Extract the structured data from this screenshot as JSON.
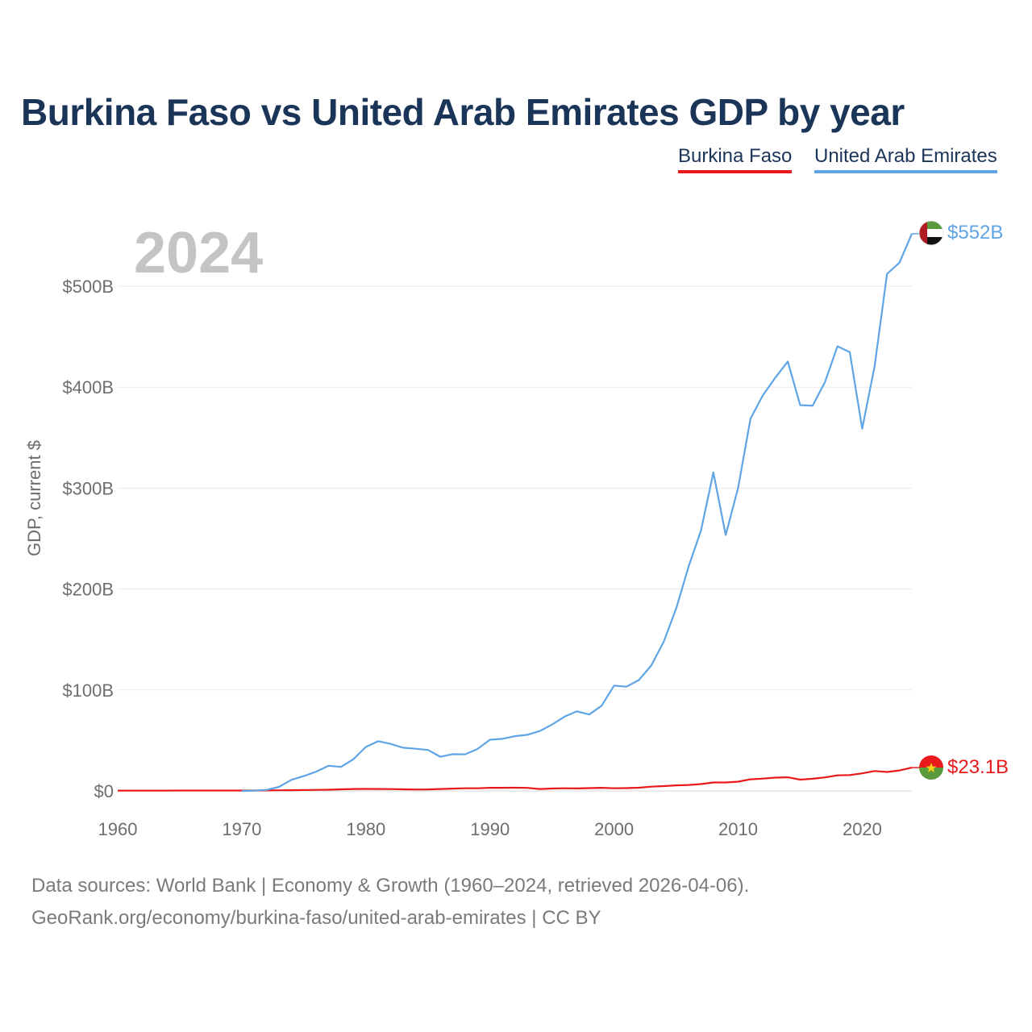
{
  "title": "Burkina Faso vs United Arab Emirates GDP by year",
  "legend": [
    {
      "label": "Burkina Faso",
      "color": "#e8191b"
    },
    {
      "label": "United Arab Emirates",
      "color": "#5fa5e6"
    }
  ],
  "source_line_1": "Data sources: World Bank | Economy & Growth (1960–2024, retrieved 2026-04-06).",
  "source_line_2": "GeoRank.org/economy/burkina-faso/united-arab-emirates | CC BY",
  "chart_data": {
    "type": "line",
    "year_label": "2024",
    "ylabel": "GDP, current $",
    "xlabel": "",
    "xlim": [
      1960,
      2024
    ],
    "ylim": [
      0,
      500
    ],
    "unit": "billion current US$",
    "x_ticks": [
      1960,
      1970,
      1980,
      1990,
      2000,
      2010,
      2020
    ],
    "x_tick_labels": [
      "1960",
      "1970",
      "1980",
      "1990",
      "2000",
      "2010",
      "2020"
    ],
    "y_ticks": [
      0,
      100,
      200,
      300,
      400,
      500
    ],
    "y_tick_labels": [
      "$0",
      "$100B",
      "$200B",
      "$300B",
      "$400B",
      "$500B"
    ],
    "grid": true,
    "series": [
      {
        "name": "Burkina Faso",
        "color": "#e8191b",
        "end_label": "$23.1B",
        "flag": "burkina-faso-flag",
        "points": [
          [
            1960,
            0.3
          ],
          [
            1961,
            0.3
          ],
          [
            1962,
            0.3
          ],
          [
            1963,
            0.3
          ],
          [
            1964,
            0.3
          ],
          [
            1965,
            0.4
          ],
          [
            1966,
            0.4
          ],
          [
            1967,
            0.4
          ],
          [
            1968,
            0.4
          ],
          [
            1969,
            0.4
          ],
          [
            1970,
            0.4
          ],
          [
            1971,
            0.4
          ],
          [
            1972,
            0.5
          ],
          [
            1973,
            0.6
          ],
          [
            1974,
            0.7
          ],
          [
            1975,
            0.9
          ],
          [
            1976,
            1.0
          ],
          [
            1977,
            1.2
          ],
          [
            1978,
            1.6
          ],
          [
            1979,
            1.9
          ],
          [
            1980,
            2.0
          ],
          [
            1981,
            1.9
          ],
          [
            1982,
            1.8
          ],
          [
            1983,
            1.6
          ],
          [
            1984,
            1.4
          ],
          [
            1985,
            1.5
          ],
          [
            1986,
            1.9
          ],
          [
            1987,
            2.3
          ],
          [
            1988,
            2.6
          ],
          [
            1989,
            2.6
          ],
          [
            1990,
            3.1
          ],
          [
            1991,
            3.1
          ],
          [
            1992,
            3.2
          ],
          [
            1993,
            3.0
          ],
          [
            1994,
            1.9
          ],
          [
            1995,
            2.4
          ],
          [
            1996,
            2.6
          ],
          [
            1997,
            2.5
          ],
          [
            1998,
            2.8
          ],
          [
            1999,
            3.1
          ],
          [
            2000,
            2.6
          ],
          [
            2001,
            2.8
          ],
          [
            2002,
            3.2
          ],
          [
            2003,
            4.2
          ],
          [
            2004,
            4.8
          ],
          [
            2005,
            5.5
          ],
          [
            2006,
            5.9
          ],
          [
            2007,
            6.8
          ],
          [
            2008,
            8.4
          ],
          [
            2009,
            8.4
          ],
          [
            2010,
            9.2
          ],
          [
            2011,
            11.5
          ],
          [
            2012,
            12.2
          ],
          [
            2013,
            13.2
          ],
          [
            2014,
            13.5
          ],
          [
            2015,
            11.2
          ],
          [
            2016,
            12.1
          ],
          [
            2017,
            13.4
          ],
          [
            2018,
            15.4
          ],
          [
            2019,
            15.7
          ],
          [
            2020,
            17.4
          ],
          [
            2021,
            19.7
          ],
          [
            2022,
            18.8
          ],
          [
            2023,
            20.3
          ],
          [
            2024,
            23.1
          ]
        ]
      },
      {
        "name": "United Arab Emirates",
        "color": "#5fa5e6",
        "end_label": "$552B",
        "flag": "uae-flag",
        "points": [
          [
            1970,
            0.0
          ],
          [
            1971,
            0.3
          ],
          [
            1972,
            1.0
          ],
          [
            1973,
            4.0
          ],
          [
            1974,
            11.0
          ],
          [
            1975,
            14.7
          ],
          [
            1976,
            19.2
          ],
          [
            1977,
            24.9
          ],
          [
            1978,
            23.8
          ],
          [
            1979,
            31.5
          ],
          [
            1980,
            43.6
          ],
          [
            1981,
            49.3
          ],
          [
            1982,
            46.6
          ],
          [
            1983,
            42.8
          ],
          [
            1984,
            41.8
          ],
          [
            1985,
            40.6
          ],
          [
            1986,
            33.9
          ],
          [
            1987,
            36.4
          ],
          [
            1988,
            36.3
          ],
          [
            1989,
            41.5
          ],
          [
            1990,
            50.7
          ],
          [
            1991,
            51.6
          ],
          [
            1992,
            54.2
          ],
          [
            1993,
            55.6
          ],
          [
            1994,
            59.3
          ],
          [
            1995,
            65.7
          ],
          [
            1996,
            73.6
          ],
          [
            1997,
            78.8
          ],
          [
            1998,
            75.7
          ],
          [
            1999,
            84.4
          ],
          [
            2000,
            104.3
          ],
          [
            2001,
            103.3
          ],
          [
            2002,
            109.8
          ],
          [
            2003,
            124.3
          ],
          [
            2004,
            147.8
          ],
          [
            2005,
            180.6
          ],
          [
            2006,
            222.1
          ],
          [
            2007,
            257.9
          ],
          [
            2008,
            315.5
          ],
          [
            2009,
            253.5
          ],
          [
            2010,
            300.2
          ],
          [
            2011,
            368.9
          ],
          [
            2012,
            392.1
          ],
          [
            2013,
            409.5
          ],
          [
            2014,
            425.4
          ],
          [
            2015,
            382.2
          ],
          [
            2016,
            381.6
          ],
          [
            2017,
            405.2
          ],
          [
            2018,
            440.5
          ],
          [
            2019,
            434.7
          ],
          [
            2020,
            358.9
          ],
          [
            2021,
            420.8
          ],
          [
            2022,
            512.2
          ],
          [
            2023,
            523.3
          ],
          [
            2024,
            552.0
          ]
        ]
      }
    ]
  }
}
